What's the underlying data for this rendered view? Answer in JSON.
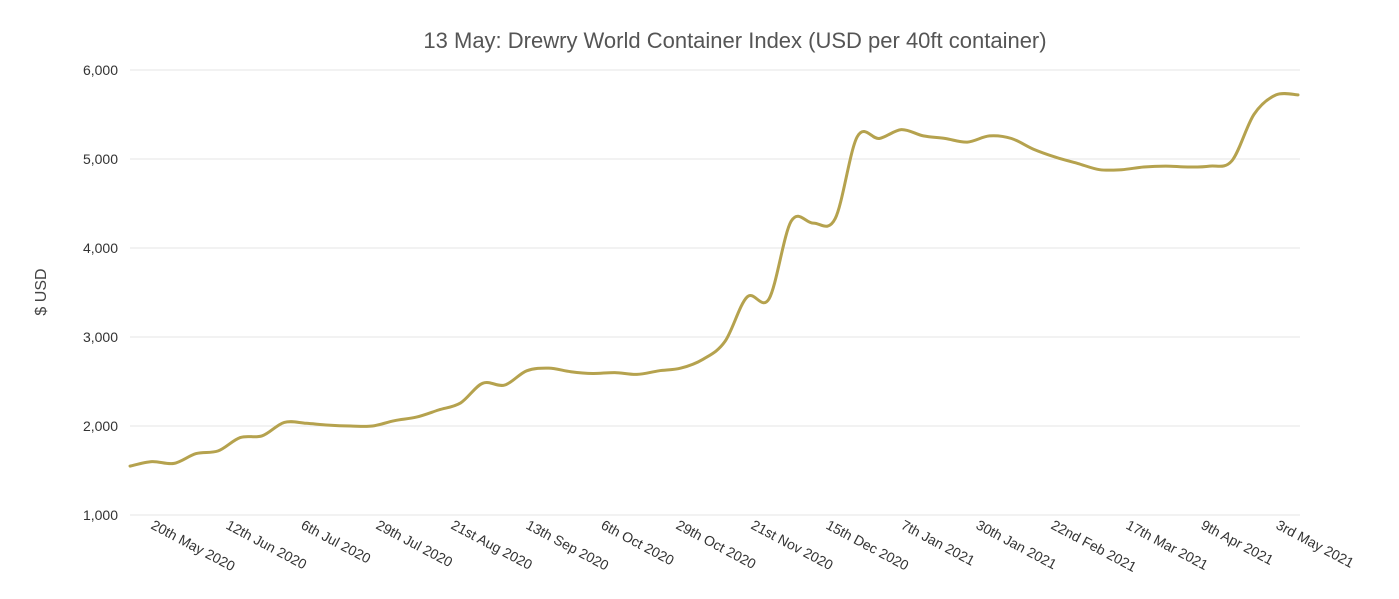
{
  "chart_data": {
    "type": "line",
    "title": "13 May: Drewry World Container Index (USD per 40ft container)",
    "xlabel": "",
    "ylabel": "$ USD",
    "ylim": [
      1000,
      6000
    ],
    "yticks": [
      1000,
      2000,
      3000,
      4000,
      5000,
      6000
    ],
    "ytick_labels": [
      "1,000",
      "2,000",
      "3,000",
      "4,000",
      "5,000",
      "6,000"
    ],
    "xtick_labels": [
      "20th May 2020",
      "12th Jun 2020",
      "6th Jul 2020",
      "29th Jul 2020",
      "21st Aug 2020",
      "13th Sep 2020",
      "6th Oct 2020",
      "29th Oct 2020",
      "21st Nov 2020",
      "15th Dec 2020",
      "7th Jan 2021",
      "30th Jan 2021",
      "22nd Feb 2021",
      "17th Mar 2021",
      "9th Apr 2021",
      "3rd May 2021"
    ],
    "grid": true,
    "legend": "none",
    "color": "#b5a24e",
    "series": [
      {
        "x": [
          "2020-05-07",
          "2020-05-14",
          "2020-05-21",
          "2020-05-28",
          "2020-06-04",
          "2020-06-11",
          "2020-06-18",
          "2020-06-25",
          "2020-07-02",
          "2020-07-09",
          "2020-07-16",
          "2020-07-23",
          "2020-07-30",
          "2020-08-06",
          "2020-08-13",
          "2020-08-20",
          "2020-08-27",
          "2020-09-03",
          "2020-09-10",
          "2020-09-17",
          "2020-09-24",
          "2020-10-01",
          "2020-10-08",
          "2020-10-15",
          "2020-10-22",
          "2020-10-29",
          "2020-11-05",
          "2020-11-12",
          "2020-11-19",
          "2020-11-26",
          "2020-12-03",
          "2020-12-10",
          "2020-12-17",
          "2020-12-24",
          "2020-12-31",
          "2021-01-07",
          "2021-01-14",
          "2021-01-21",
          "2021-01-28",
          "2021-02-04",
          "2021-02-11",
          "2021-02-18",
          "2021-02-25",
          "2021-03-04",
          "2021-03-11",
          "2021-03-18",
          "2021-03-25",
          "2021-04-01",
          "2021-04-08",
          "2021-04-15",
          "2021-04-22",
          "2021-04-29",
          "2021-05-06",
          "2021-05-13"
        ],
        "values": [
          1550,
          1600,
          1580,
          1690,
          1720,
          1870,
          1890,
          2040,
          2030,
          2010,
          2000,
          2000,
          2060,
          2100,
          2180,
          2260,
          2480,
          2460,
          2620,
          2650,
          2610,
          2590,
          2600,
          2580,
          2620,
          2650,
          2750,
          2950,
          3450,
          3430,
          4300,
          4280,
          4330,
          5250,
          5230,
          5330,
          5260,
          5230,
          5190,
          5260,
          5230,
          5110,
          5020,
          4950,
          4880,
          4880,
          4910,
          4920,
          4910,
          4920,
          4980,
          5500,
          5720,
          5720
        ]
      }
    ]
  }
}
